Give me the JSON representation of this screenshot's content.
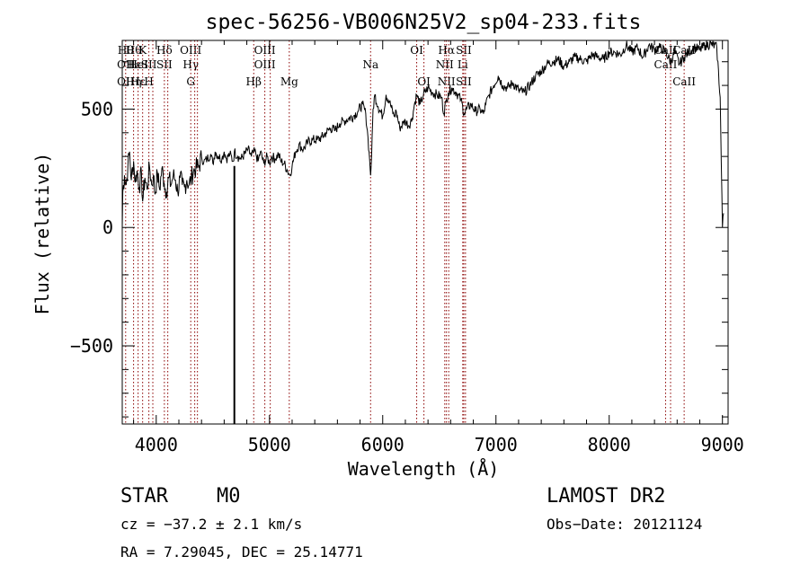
{
  "chart_data": {
    "type": "line",
    "title": "spec-56256-VB006N25V2_sp04-233.fits",
    "xlabel": "Wavelength (Å)",
    "ylabel": "Flux (relative)",
    "xlim": [
      3700,
      9050
    ],
    "ylim": [
      -830,
      790
    ],
    "xticks": [
      4000,
      5000,
      6000,
      7000,
      8000,
      9000
    ],
    "yticks": [
      -500,
      0,
      500
    ],
    "grid": false,
    "series": [
      {
        "points": [
          [
            3700,
            0
          ],
          [
            3705,
            150
          ],
          [
            3720,
            220
          ],
          [
            3735,
            180
          ],
          [
            3750,
            260
          ],
          [
            3765,
            320
          ],
          [
            3780,
            200
          ],
          [
            3800,
            280
          ],
          [
            3815,
            190
          ],
          [
            3830,
            240
          ],
          [
            3850,
            170
          ],
          [
            3870,
            230
          ],
          [
            3880,
            110
          ],
          [
            3900,
            210
          ],
          [
            3920,
            160
          ],
          [
            3940,
            260
          ],
          [
            3960,
            180
          ],
          [
            3975,
            220
          ],
          [
            3990,
            140
          ],
          [
            4010,
            230
          ],
          [
            4030,
            160
          ],
          [
            4050,
            250
          ],
          [
            4070,
            190
          ],
          [
            4090,
            150
          ],
          [
            4110,
            210
          ],
          [
            4130,
            180
          ],
          [
            4150,
            220
          ],
          [
            4170,
            200
          ],
          [
            4190,
            150
          ],
          [
            4210,
            210
          ],
          [
            4230,
            180
          ],
          [
            4250,
            170
          ],
          [
            4270,
            200
          ],
          [
            4290,
            180
          ],
          [
            4310,
            210
          ],
          [
            4330,
            240
          ],
          [
            4350,
            250
          ],
          [
            4380,
            260
          ],
          [
            4400,
            300
          ],
          [
            4420,
            275
          ],
          [
            4450,
            290
          ],
          [
            4480,
            310
          ],
          [
            4500,
            270
          ],
          [
            4520,
            320
          ],
          [
            4550,
            300
          ],
          [
            4580,
            290
          ],
          [
            4600,
            320
          ],
          [
            4620,
            290
          ],
          [
            4650,
            310
          ],
          [
            4680,
            280
          ],
          [
            4690,
            320
          ],
          [
            4720,
            300
          ],
          [
            4750,
            290
          ],
          [
            4780,
            310
          ],
          [
            4810,
            330
          ],
          [
            4840,
            300
          ],
          [
            4860,
            320
          ],
          [
            4880,
            310
          ],
          [
            4900,
            280
          ],
          [
            4920,
            320
          ],
          [
            4950,
            270
          ],
          [
            4980,
            300
          ],
          [
            5000,
            270
          ],
          [
            5020,
            300
          ],
          [
            5050,
            290
          ],
          [
            5080,
            310
          ],
          [
            5100,
            280
          ],
          [
            5130,
            270
          ],
          [
            5160,
            240
          ],
          [
            5180,
            220
          ],
          [
            5200,
            260
          ],
          [
            5230,
            320
          ],
          [
            5260,
            350
          ],
          [
            5300,
            330
          ],
          [
            5340,
            360
          ],
          [
            5380,
            370
          ],
          [
            5420,
            370
          ],
          [
            5460,
            380
          ],
          [
            5500,
            400
          ],
          [
            5540,
            420
          ],
          [
            5580,
            410
          ],
          [
            5620,
            440
          ],
          [
            5660,
            450
          ],
          [
            5700,
            460
          ],
          [
            5740,
            470
          ],
          [
            5780,
            490
          ],
          [
            5820,
            520
          ],
          [
            5850,
            480
          ],
          [
            5870,
            380
          ],
          [
            5885,
            280
          ],
          [
            5893,
            220
          ],
          [
            5902,
            300
          ],
          [
            5915,
            500
          ],
          [
            5930,
            560
          ],
          [
            5960,
            510
          ],
          [
            6000,
            470
          ],
          [
            6030,
            560
          ],
          [
            6060,
            530
          ],
          [
            6100,
            470
          ],
          [
            6120,
            490
          ],
          [
            6150,
            420
          ],
          [
            6180,
            440
          ],
          [
            6200,
            450
          ],
          [
            6230,
            430
          ],
          [
            6260,
            460
          ],
          [
            6280,
            520
          ],
          [
            6300,
            560
          ],
          [
            6330,
            520
          ],
          [
            6360,
            560
          ],
          [
            6400,
            590
          ],
          [
            6440,
            570
          ],
          [
            6480,
            560
          ],
          [
            6520,
            550
          ],
          [
            6540,
            480
          ],
          [
            6563,
            540
          ],
          [
            6580,
            570
          ],
          [
            6610,
            590
          ],
          [
            6650,
            570
          ],
          [
            6690,
            540
          ],
          [
            6720,
            480
          ],
          [
            6740,
            500
          ],
          [
            6780,
            520
          ],
          [
            6820,
            490
          ],
          [
            6860,
            500
          ],
          [
            6890,
            480
          ],
          [
            6910,
            520
          ],
          [
            6940,
            560
          ],
          [
            6980,
            600
          ],
          [
            7020,
            640
          ],
          [
            7060,
            600
          ],
          [
            7100,
            590
          ],
          [
            7150,
            610
          ],
          [
            7200,
            580
          ],
          [
            7250,
            570
          ],
          [
            7300,
            600
          ],
          [
            7350,
            640
          ],
          [
            7400,
            660
          ],
          [
            7450,
            690
          ],
          [
            7500,
            700
          ],
          [
            7550,
            710
          ],
          [
            7600,
            680
          ],
          [
            7650,
            700
          ],
          [
            7700,
            720
          ],
          [
            7750,
            710
          ],
          [
            7800,
            700
          ],
          [
            7850,
            730
          ],
          [
            7900,
            720
          ],
          [
            7950,
            710
          ],
          [
            8000,
            740
          ],
          [
            8050,
            740
          ],
          [
            8100,
            730
          ],
          [
            8150,
            770
          ],
          [
            8200,
            740
          ],
          [
            8250,
            760
          ],
          [
            8300,
            720
          ],
          [
            8350,
            770
          ],
          [
            8400,
            750
          ],
          [
            8450,
            760
          ],
          [
            8500,
            740
          ],
          [
            8542,
            700
          ],
          [
            8580,
            740
          ],
          [
            8620,
            690
          ],
          [
            8662,
            720
          ],
          [
            8700,
            740
          ],
          [
            8750,
            760
          ],
          [
            8800,
            750
          ],
          [
            8850,
            770
          ],
          [
            8900,
            775
          ],
          [
            8950,
            760
          ],
          [
            8980,
            550
          ],
          [
            9000,
            0
          ],
          [
            9010,
            60
          ]
        ],
        "spike": {
          "x": 4690,
          "y": -830
        }
      }
    ],
    "lines": [
      {
        "x": 3730,
        "labels": [
          "Hθ",
          "OII",
          "OII"
        ]
      },
      {
        "x": 3800,
        "labels": [
          "Hθ",
          "Hε",
          "Hη"
        ]
      },
      {
        "x": 3840,
        "labels": [
          "",
          "HeI",
          "Hε"
        ]
      },
      {
        "x": 3880,
        "labels": [
          "K",
          "",
          ""
        ]
      },
      {
        "x": 3935,
        "labels": [
          "",
          "SII",
          "H"
        ]
      },
      {
        "x": 3970,
        "labels": [
          "",
          "",
          ""
        ]
      },
      {
        "x": 4072,
        "labels": [
          "Hδ",
          "SII",
          ""
        ]
      },
      {
        "x": 4102,
        "labels": [
          "",
          "",
          ""
        ]
      },
      {
        "x": 4305,
        "labels": [
          "OIII",
          "Hγ",
          "G"
        ]
      },
      {
        "x": 4340,
        "labels": [
          "",
          "",
          ""
        ]
      },
      {
        "x": 4364,
        "labels": [
          "",
          "",
          ""
        ]
      },
      {
        "x": 4861,
        "labels": [
          "",
          "",
          "Hβ"
        ]
      },
      {
        "x": 4959,
        "labels": [
          "OIII",
          "OIII",
          ""
        ]
      },
      {
        "x": 5007,
        "labels": [
          "",
          "",
          ""
        ]
      },
      {
        "x": 5175,
        "labels": [
          "",
          "",
          "Mg"
        ]
      },
      {
        "x": 5893,
        "labels": [
          "",
          "Na",
          ""
        ]
      },
      {
        "x": 6300,
        "labels": [
          "OI",
          "",
          ""
        ]
      },
      {
        "x": 6364,
        "labels": [
          "",
          "",
          "OI"
        ]
      },
      {
        "x": 6548,
        "labels": [
          "",
          "NII",
          ""
        ]
      },
      {
        "x": 6563,
        "labels": [
          "Hα",
          "",
          "NII"
        ]
      },
      {
        "x": 6583,
        "labels": [
          "",
          "",
          ""
        ]
      },
      {
        "x": 6707,
        "labels": [
          "",
          "Li",
          ""
        ]
      },
      {
        "x": 6716,
        "labels": [
          "SII",
          "",
          "SII"
        ]
      },
      {
        "x": 6731,
        "labels": [
          "",
          "",
          ""
        ]
      },
      {
        "x": 8498,
        "labels": [
          "CaII",
          "CaII",
          ""
        ]
      },
      {
        "x": 8542,
        "labels": [
          "",
          "",
          ""
        ]
      },
      {
        "x": 8662,
        "labels": [
          "CaII",
          "",
          "CaII"
        ]
      }
    ]
  },
  "info": {
    "class_label": "STAR",
    "subclass_label": "M0",
    "survey_label": "LAMOST DR2",
    "cz_text": "cz = −37.2 ± 2.1 km/s",
    "obs_date_text": "Obs−Date: 20121124",
    "radec_text": "RA =   7.29045, DEC =  25.14771"
  }
}
